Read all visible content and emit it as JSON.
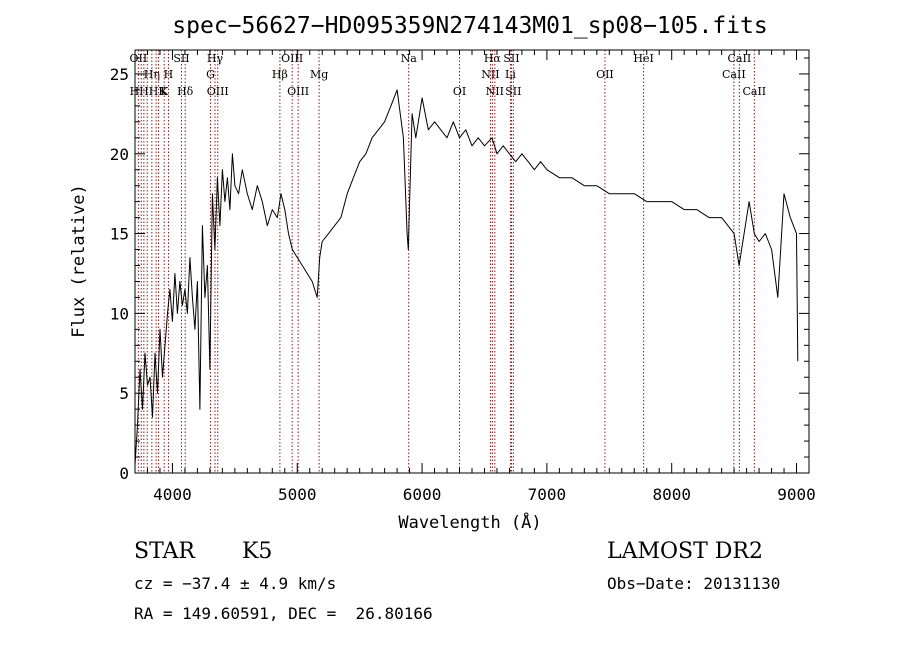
{
  "chart_data": {
    "type": "line",
    "title": "spec−56627−HD095359N274143M01_sp08−105.fits",
    "xlabel": "Wavelength (Å)",
    "ylabel": "Flux (relative)",
    "xlim": [
      3700,
      9100
    ],
    "ylim": [
      0,
      26.5
    ],
    "x_ticks": [
      4000,
      5000,
      6000,
      7000,
      8000,
      9000
    ],
    "x_tick_labels": [
      "4000",
      "5000",
      "6000",
      "7000",
      "8000",
      "9000"
    ],
    "y_ticks": [
      0,
      5,
      10,
      15,
      20,
      25
    ],
    "y_tick_labels": [
      "0",
      "5",
      "10",
      "15",
      "20",
      "25"
    ],
    "grid": false,
    "line_color": "#000000",
    "marker_line_color": "#8b1a1a",
    "series": [
      {
        "x": [
          3700,
          3720,
          3740,
          3760,
          3780,
          3800,
          3820,
          3840,
          3860,
          3880,
          3900,
          3920,
          3940,
          3960,
          3980,
          4000,
          4020,
          4040,
          4060,
          4080,
          4100,
          4120,
          4140,
          4160,
          4180,
          4200,
          4220,
          4240,
          4260,
          4280,
          4300,
          4320,
          4340,
          4360,
          4380,
          4400,
          4420,
          4440,
          4460,
          4480,
          4500,
          4530,
          4560,
          4600,
          4640,
          4680,
          4720,
          4760,
          4800,
          4840,
          4870,
          4900,
          4930,
          4960,
          5000,
          5040,
          5080,
          5120,
          5160,
          5180,
          5200,
          5250,
          5300,
          5350,
          5400,
          5450,
          5500,
          5550,
          5600,
          5650,
          5700,
          5750,
          5800,
          5850,
          5880,
          5890,
          5900,
          5920,
          5950,
          6000,
          6050,
          6100,
          6150,
          6200,
          6250,
          6300,
          6350,
          6400,
          6450,
          6500,
          6560,
          6600,
          6650,
          6700,
          6750,
          6800,
          6850,
          6900,
          6950,
          7000,
          7100,
          7200,
          7300,
          7400,
          7500,
          7600,
          7700,
          7800,
          7900,
          8000,
          8100,
          8200,
          8300,
          8400,
          8450,
          8500,
          8540,
          8600,
          8620,
          8662,
          8700,
          8750,
          8800,
          8850,
          8900,
          8950,
          9000,
          9010
        ],
        "y": [
          0.5,
          3.0,
          6.5,
          4.0,
          7.5,
          5.5,
          6.0,
          3.5,
          7.5,
          5.0,
          9.0,
          6.0,
          8.0,
          10.0,
          11.5,
          9.5,
          12.5,
          10.0,
          12.0,
          10.5,
          11.5,
          10.0,
          13.5,
          11.0,
          9.0,
          12.0,
          4.0,
          15.5,
          11.0,
          13.0,
          6.5,
          17.5,
          14.0,
          18.5,
          15.5,
          19.0,
          17.0,
          18.5,
          16.5,
          20.0,
          18.0,
          17.5,
          19.0,
          17.5,
          16.5,
          18.0,
          17.0,
          15.5,
          16.5,
          16.0,
          17.5,
          16.5,
          15.0,
          14.0,
          13.5,
          13.0,
          12.5,
          12.0,
          11.0,
          13.5,
          14.5,
          15.0,
          15.5,
          16.0,
          17.5,
          18.5,
          19.5,
          20.0,
          21.0,
          21.5,
          22.0,
          23.0,
          24.0,
          21.0,
          15.0,
          14.0,
          17.0,
          22.5,
          21.0,
          23.5,
          21.5,
          22.0,
          21.5,
          21.0,
          22.0,
          21.0,
          21.5,
          20.5,
          21.0,
          20.5,
          21.0,
          20.0,
          20.5,
          20.0,
          19.5,
          20.0,
          19.5,
          19.0,
          19.5,
          19.0,
          18.5,
          18.5,
          18.0,
          18.0,
          17.5,
          17.5,
          17.5,
          17.0,
          17.0,
          17.0,
          16.5,
          16.5,
          16.0,
          16.0,
          15.5,
          15.0,
          13.0,
          16.0,
          17.0,
          15.0,
          14.5,
          15.0,
          14.0,
          11.0,
          17.5,
          16.0,
          15.0,
          7.0
        ]
      }
    ],
    "line_markers": [
      {
        "x": 3727,
        "label": "OII",
        "row": 1
      },
      {
        "x": 3750,
        "label": "",
        "row": 0
      },
      {
        "x": 3771,
        "label": "",
        "row": 0
      },
      {
        "x": 3798,
        "label": "",
        "row": 0
      },
      {
        "x": 3835,
        "label": "Hη",
        "row": 2
      },
      {
        "x": 3869,
        "label": "",
        "row": 0
      },
      {
        "x": 3889,
        "label": "",
        "row": 0
      },
      {
        "x": 3934,
        "label": "K",
        "row": 3
      },
      {
        "x": 3968,
        "label": "H",
        "row": 2
      },
      {
        "x": 4072,
        "label": "SII",
        "row": 1
      },
      {
        "x": 4102,
        "label": "Hδ",
        "row": 3
      },
      {
        "x": 4305,
        "label": "G",
        "row": 2
      },
      {
        "x": 4341,
        "label": "Hγ",
        "row": 1
      },
      {
        "x": 4363,
        "label": "OIII",
        "row": 3
      },
      {
        "x": 4861,
        "label": "Hβ",
        "row": 2
      },
      {
        "x": 4959,
        "label": "OIII",
        "row": 1
      },
      {
        "x": 5007,
        "label": "OIII",
        "row": 3
      },
      {
        "x": 5175,
        "label": "Mg",
        "row": 2
      },
      {
        "x": 5893,
        "label": "Na",
        "row": 1
      },
      {
        "x": 6300,
        "label": "OI",
        "row": 3
      },
      {
        "x": 6548,
        "label": "NII",
        "row": 2
      },
      {
        "x": 6563,
        "label": "Hα",
        "row": 1
      },
      {
        "x": 6583,
        "label": "NII",
        "row": 3
      },
      {
        "x": 6708,
        "label": "Li",
        "row": 2
      },
      {
        "x": 6716,
        "label": "SII",
        "row": 1
      },
      {
        "x": 6731,
        "label": "SII",
        "row": 3
      },
      {
        "x": 7465,
        "label": "OII",
        "row": 2
      },
      {
        "x": 7775,
        "label": "HeI",
        "row": 1
      },
      {
        "x": 8498,
        "label": "CaII",
        "row": 2
      },
      {
        "x": 8542,
        "label": "CaII",
        "row": 1
      },
      {
        "x": 8662,
        "label": "CaII",
        "row": 3
      }
    ],
    "marker_cluster_labels": [
      {
        "x": 3805,
        "text": "HHHK"
      }
    ]
  },
  "info": {
    "class_label": "STAR",
    "subclass": "K5",
    "survey": "LAMOST DR2",
    "cz": "cz = −37.4 ± 4.9 km/s",
    "obs_date": "Obs−Date: 20131130",
    "coords": "RA = 149.60591, DEC =  26.80166"
  }
}
